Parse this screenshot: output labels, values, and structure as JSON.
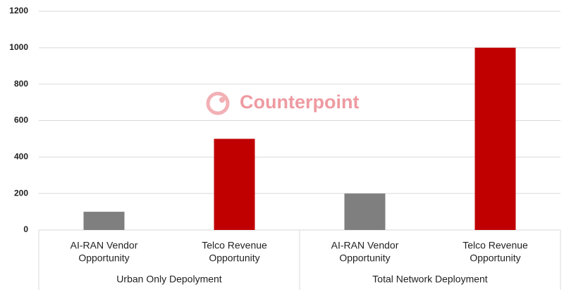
{
  "chart_data": {
    "type": "bar",
    "categories": [
      [
        "AI-RAN Vendor",
        "Opportunity"
      ],
      [
        "Telco Revenue",
        "Opportunity"
      ],
      [
        "AI-RAN Vendor",
        "Opportunity"
      ],
      [
        "Telco Revenue",
        "Opportunity"
      ]
    ],
    "groups": [
      {
        "label": "Urban Only Depolyment",
        "size": 2
      },
      {
        "label": "Total Network Deployment",
        "size": 2
      }
    ],
    "values": [
      100,
      500,
      200,
      1000
    ],
    "colors": [
      "#7f7f7f",
      "#c00000",
      "#7f7f7f",
      "#c00000"
    ],
    "ylim": [
      0,
      1200
    ],
    "yticks": [
      0,
      200,
      400,
      600,
      800,
      1000,
      1200
    ],
    "grid": true,
    "watermark": "Counterpoint"
  }
}
